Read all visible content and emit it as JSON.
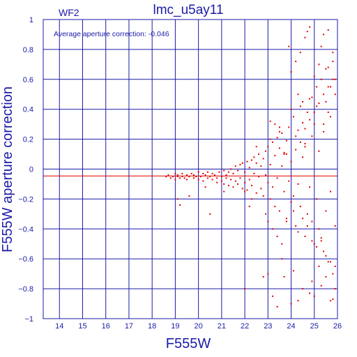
{
  "colors": {
    "axis": "#1a1aa8",
    "grid": "#1a1aa8",
    "points": "#e00000",
    "avg_line": "#e00000",
    "text": "#1a1aa8"
  },
  "chart_data": {
    "type": "scatter",
    "title": "lmc_u5ay11",
    "corner_label": "WF2",
    "annotation": "Average aperture correction: -0.046",
    "xlabel": "F555W",
    "ylabel": "F555W aperture correction",
    "xlim": [
      13.3,
      26
    ],
    "ylim": [
      -1,
      1
    ],
    "xticks": [
      14,
      15,
      16,
      17,
      18,
      19,
      20,
      21,
      22,
      23,
      24,
      25,
      26
    ],
    "yticks": [
      -1,
      -0.8,
      -0.6,
      -0.4,
      -0.2,
      0,
      0.2,
      0.4,
      0.6,
      0.8,
      1
    ],
    "ytick_labels": [
      "−1",
      "−0.8",
      "−0.6",
      "−0.4",
      "−0.2",
      "0",
      "0.2",
      "0.4",
      "0.6",
      "0.8",
      "1"
    ],
    "grid": true,
    "reference_line": {
      "y": -0.046,
      "label": "average"
    },
    "series": [
      {
        "name": "",
        "x": [
          18.6,
          18.7,
          18.8,
          18.9,
          19.0,
          19.0,
          19.1,
          19.1,
          19.2,
          19.3,
          19.3,
          19.4,
          19.5,
          19.5,
          19.6,
          19.7,
          19.8,
          19.8,
          19.9,
          20.0,
          20.0,
          20.1,
          20.2,
          20.2,
          20.3,
          20.4,
          20.4,
          20.5,
          20.6,
          20.6,
          20.7,
          20.8,
          20.8,
          20.9,
          21.0,
          21.0,
          21.1,
          21.1,
          21.2,
          21.2,
          21.3,
          21.3,
          21.4,
          21.4,
          21.5,
          21.5,
          21.6,
          21.6,
          21.7,
          21.7,
          21.8,
          21.8,
          21.9,
          21.9,
          22.0,
          22.0,
          22.1,
          22.1,
          22.2,
          22.2,
          22.3,
          22.3,
          22.4,
          22.4,
          22.5,
          22.5,
          22.6,
          22.6,
          22.7,
          22.7,
          22.8,
          22.8,
          22.9,
          22.9,
          23.0,
          23.0,
          23.1,
          23.1,
          23.2,
          23.2,
          23.3,
          23.3,
          23.4,
          23.4,
          23.5,
          23.5,
          23.6,
          23.6,
          23.7,
          23.7,
          23.8,
          23.8,
          23.9,
          23.9,
          24.0,
          24.0,
          24.1,
          24.1,
          24.2,
          24.2,
          24.3,
          24.3,
          24.4,
          24.4,
          24.5,
          24.5,
          24.6,
          24.6,
          24.7,
          24.7,
          24.8,
          24.8,
          24.9,
          24.9,
          25.0,
          25.0,
          25.1,
          25.1,
          25.2,
          25.2,
          25.3,
          25.3,
          25.4,
          25.4,
          25.5,
          25.5,
          25.6,
          25.6,
          25.7,
          25.7,
          25.8,
          25.8,
          25.9,
          25.9,
          19.1,
          19.2,
          19.6,
          20.3,
          20.5,
          21.1,
          22.0,
          22.3,
          22.2,
          22.5,
          22.9,
          23.0,
          23.1,
          23.2,
          23.3,
          23.4,
          23.5,
          23.6,
          23.7,
          23.8,
          24.0,
          24.1,
          24.2,
          24.3,
          24.4,
          24.5,
          24.6,
          24.7,
          24.8,
          24.9,
          25.0,
          25.1,
          25.2,
          25.3,
          25.4,
          25.5,
          25.6,
          25.7,
          25.8,
          25.9,
          23.9,
          24.0,
          24.2,
          24.4,
          24.6,
          24.7,
          24.8,
          25.0,
          25.2,
          25.3,
          25.4,
          25.5,
          25.6,
          25.7,
          25.8,
          25.9,
          24.5,
          24.3,
          25.1,
          25.6,
          24.9,
          25.4,
          23.8,
          23.1,
          24.6,
          23.5,
          22.0,
          22.8,
          23.0,
          23.2,
          23.4,
          23.7,
          24.0,
          24.3,
          24.5,
          24.8,
          25.0,
          25.3,
          25.5,
          25.7,
          25.9,
          25.2,
          24.1,
          23.6,
          24.9,
          25.8
        ],
        "y": [
          -0.05,
          -0.04,
          -0.06,
          -0.05,
          -0.03,
          -0.07,
          -0.05,
          -0.04,
          -0.06,
          -0.05,
          -0.03,
          -0.06,
          -0.04,
          -0.07,
          -0.05,
          -0.03,
          -0.06,
          -0.04,
          -0.05,
          -0.02,
          -0.07,
          -0.05,
          -0.03,
          -0.08,
          -0.04,
          -0.06,
          -0.02,
          -0.05,
          -0.07,
          -0.03,
          -0.04,
          -0.06,
          -0.09,
          -0.02,
          -0.05,
          -0.08,
          -0.01,
          -0.1,
          -0.04,
          -0.06,
          -0.02,
          -0.11,
          0.0,
          -0.07,
          -0.03,
          -0.12,
          0.02,
          -0.08,
          -0.01,
          -0.1,
          0.03,
          -0.06,
          -0.13,
          0.04,
          -0.02,
          -0.09,
          0.05,
          -0.14,
          0.01,
          -0.07,
          0.06,
          -0.11,
          -0.03,
          0.08,
          -0.16,
          0.04,
          -0.05,
          0.1,
          -0.13,
          0.02,
          -0.18,
          0.07,
          -0.04,
          0.12,
          -0.09,
          0.15,
          -0.2,
          0.03,
          0.18,
          -0.12,
          0.09,
          -0.25,
          0.21,
          -0.06,
          0.14,
          -0.28,
          0.02,
          0.24,
          -0.15,
          0.11,
          -0.33,
          0.19,
          -0.08,
          0.28,
          -0.22,
          0.05,
          0.35,
          -0.18,
          0.13,
          -0.38,
          0.26,
          -0.1,
          0.42,
          -0.25,
          0.08,
          0.31,
          -0.45,
          0.17,
          -0.3,
          0.38,
          -0.12,
          0.47,
          -0.35,
          0.22,
          -0.5,
          0.3,
          -0.2,
          0.55,
          -0.4,
          0.12,
          0.6,
          -0.48,
          0.25,
          -0.55,
          0.45,
          -0.28,
          0.68,
          -0.62,
          0.35,
          -0.15,
          0.72,
          -0.7,
          0.5,
          -0.38,
          -0.2,
          -0.24,
          -0.18,
          -0.12,
          -0.3,
          -0.15,
          -0.15,
          -0.2,
          -0.25,
          0.15,
          -0.3,
          -0.35,
          0.2,
          -0.4,
          0.3,
          -0.45,
          0.25,
          -0.5,
          0.1,
          -0.35,
          0.4,
          -0.28,
          0.22,
          -0.42,
          0.18,
          -0.33,
          0.27,
          -0.38,
          0.33,
          -0.48,
          0.38,
          -0.52,
          0.44,
          -0.46,
          0.5,
          -0.58,
          0.55,
          -0.62,
          0.6,
          -0.65,
          0.82,
          0.65,
          0.72,
          0.78,
          0.88,
          0.92,
          0.95,
          0.62,
          0.7,
          0.82,
          0.9,
          0.67,
          0.93,
          0.55,
          0.78,
          0.6,
          0.45,
          0.5,
          0.42,
          0.38,
          0.48,
          0.3,
          0.1,
          0.32,
          0.15,
          0.28,
          -0.8,
          -0.72,
          -0.7,
          -0.85,
          -0.92,
          -0.72,
          -0.9,
          -0.88,
          -0.8,
          -0.83,
          -0.85,
          -0.78,
          -0.72,
          -0.88,
          -0.8,
          -0.65,
          -0.68,
          -0.6,
          -0.75,
          -0.87
        ]
      }
    ]
  }
}
